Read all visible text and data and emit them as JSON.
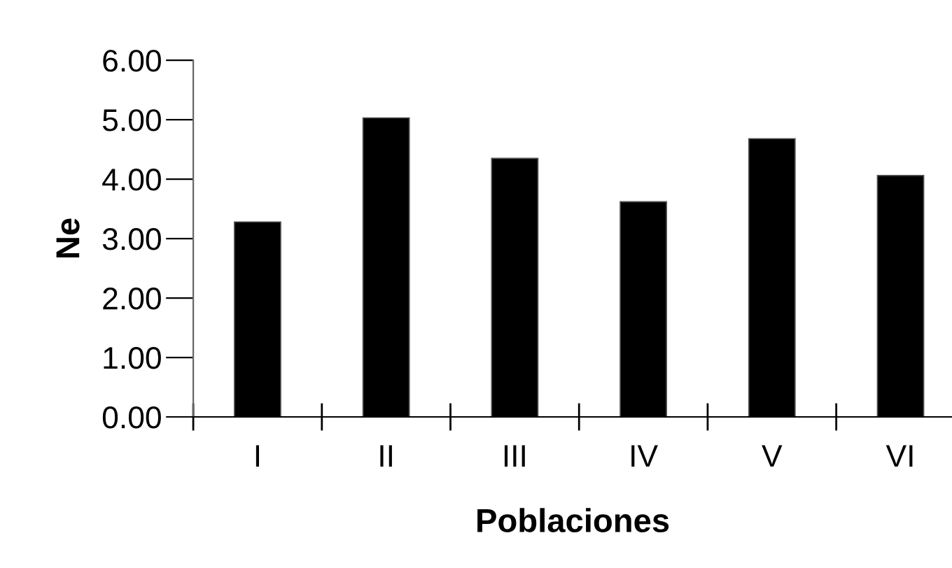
{
  "chart_data": {
    "type": "bar",
    "xlabel": "Poblaciones",
    "ylabel": "Ne",
    "categories": [
      "I",
      "II",
      "III",
      "IV",
      "V",
      "VI"
    ],
    "values": [
      3.28,
      5.03,
      4.35,
      3.62,
      4.68,
      4.06
    ],
    "color": "#000000",
    "ylim": [
      0,
      6
    ],
    "yticks": [
      {
        "value": 0,
        "label": "0.00"
      },
      {
        "value": 1,
        "label": "1.00"
      },
      {
        "value": 2,
        "label": "2.00"
      },
      {
        "value": 3,
        "label": "3.00"
      },
      {
        "value": 4,
        "label": "4.00"
      },
      {
        "value": 5,
        "label": "5.00"
      },
      {
        "value": 6,
        "label": "6.00"
      }
    ],
    "grid": false
  }
}
